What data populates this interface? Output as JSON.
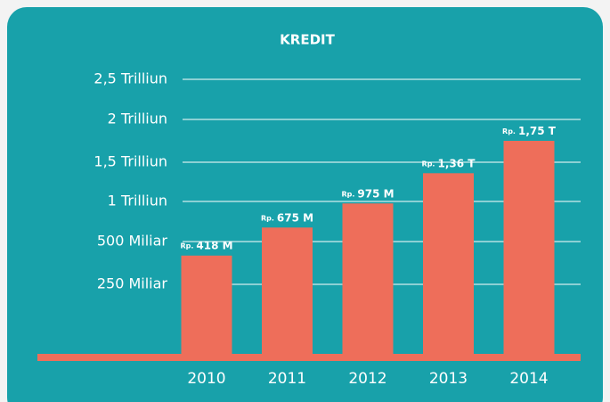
{
  "chart_data": {
    "type": "bar",
    "title": "KREDIT",
    "categories": [
      "2010",
      "2011",
      "2012",
      "2013",
      "2014"
    ],
    "values": [
      418,
      675,
      975,
      1360,
      1750
    ],
    "value_prefix": "Rp.",
    "value_labels": [
      "418 M",
      "675 M",
      "975 M",
      "1,36 T",
      "1,75 T"
    ],
    "color": "#ee6e5a",
    "ylim": [
      0,
      2500
    ],
    "yticks": [
      {
        "value": 250,
        "label": "250 Miliar"
      },
      {
        "value": 500,
        "label": "500 Miliar"
      },
      {
        "value": 1000,
        "label": "1 Trilliun"
      },
      {
        "value": 1500,
        "label": "1,5 Trilliun"
      },
      {
        "value": 2000,
        "label": "2 Trilliun"
      },
      {
        "value": 2500,
        "label": "2,5 Trilliun"
      }
    ],
    "grid": true
  }
}
